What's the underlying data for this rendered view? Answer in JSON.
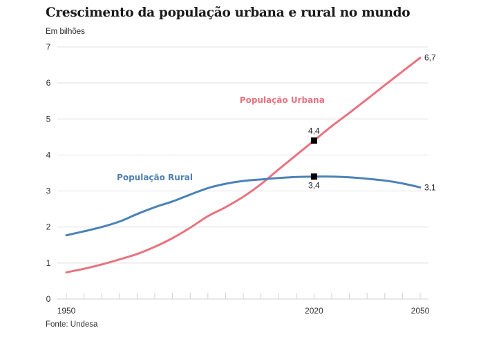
{
  "chart_data": {
    "type": "line",
    "title": "Crescimento da população urbana e rural no mundo",
    "subtitle": "Em bilhões",
    "source": "Fonte: Undesa",
    "xlabel": "",
    "ylabel": "Em bilhões",
    "xlim": [
      1950,
      2050
    ],
    "ylim": [
      0,
      7
    ],
    "grid": true,
    "y_ticks": [
      "0",
      "1",
      "2",
      "3",
      "4",
      "5",
      "6",
      "7"
    ],
    "y_tick_values": [
      0,
      1,
      2,
      3,
      4,
      5,
      6,
      7
    ],
    "x_tick_labels": [
      "1950",
      "2020",
      "2050"
    ],
    "x_tick_label_values": [
      1950,
      2020,
      2050
    ],
    "x_minor_step": 5,
    "x": [
      1950,
      1955,
      1960,
      1965,
      1970,
      1975,
      1980,
      1985,
      1990,
      1995,
      2000,
      2005,
      2010,
      2015,
      2020,
      2025,
      2030,
      2035,
      2040,
      2045,
      2050
    ],
    "series": [
      {
        "name": "População Urbana",
        "color": "#e8737f",
        "values": [
          0.74,
          0.84,
          0.96,
          1.1,
          1.25,
          1.45,
          1.69,
          1.98,
          2.3,
          2.55,
          2.84,
          3.19,
          3.6,
          4.0,
          4.4,
          4.8,
          5.17,
          5.55,
          5.94,
          6.32,
          6.7
        ]
      },
      {
        "name": "População Rural",
        "color": "#4a82b8",
        "values": [
          1.77,
          1.88,
          2.0,
          2.15,
          2.36,
          2.55,
          2.71,
          2.9,
          3.08,
          3.2,
          3.28,
          3.32,
          3.36,
          3.39,
          3.4,
          3.4,
          3.38,
          3.34,
          3.29,
          3.21,
          3.1
        ]
      }
    ],
    "annotations": [
      {
        "label": "4,4",
        "x": 2020,
        "y": 4.4,
        "series": "População Urbana",
        "marker": "square"
      },
      {
        "label": "3,4",
        "x": 2020,
        "y": 3.4,
        "series": "População Rural",
        "marker": "square"
      },
      {
        "label": "6,7",
        "x": 2050,
        "y": 6.7,
        "series": "População Urbana"
      },
      {
        "label": "3,1",
        "x": 2050,
        "y": 3.1,
        "series": "População Rural"
      }
    ],
    "series_labels": [
      {
        "text": "População Urbana",
        "x": 2011,
        "y": 5.45,
        "color": "#e8737f"
      },
      {
        "text": "População Rural",
        "x": 1975,
        "y": 3.3,
        "color": "#4d7fb2"
      }
    ]
  }
}
